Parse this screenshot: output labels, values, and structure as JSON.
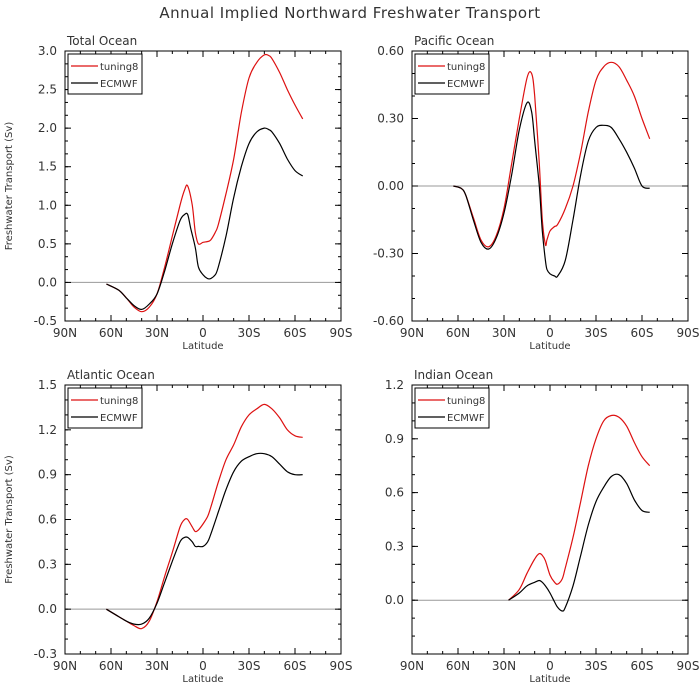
{
  "title": "Annual Implied Northward Freshwater Transport",
  "colors": {
    "tuning8": "#dd1111",
    "ECMWF": "#000000",
    "zero_line": "#999999",
    "axis": "#000000"
  },
  "chart_data": [
    {
      "type": "line",
      "title": "Total Ocean",
      "xlabel": "Latitude",
      "ylabel": "Freshwater Transport (Sv)",
      "x_tick_labels": [
        "90N",
        "60N",
        "30N",
        "0",
        "30S",
        "60S",
        "90S"
      ],
      "x_ticks": [
        -90,
        -60,
        -30,
        0,
        30,
        60,
        90
      ],
      "xlim": [
        -90,
        90
      ],
      "ylim": [
        -0.5,
        3.0
      ],
      "y_ticks": [
        -0.5,
        0.0,
        0.5,
        1.0,
        1.5,
        2.0,
        2.5,
        3.0
      ],
      "y_tick_labels": [
        "-0.5",
        "0.0",
        "0.5",
        "1.0",
        "1.5",
        "2.0",
        "2.5",
        "3.0"
      ],
      "zero_line": true,
      "legend": {
        "placement": "top-left",
        "entries": [
          "tuning8",
          "ECMWF"
        ]
      },
      "series": [
        {
          "name": "tuning8",
          "color_key": "tuning8",
          "x": [
            -63,
            -55,
            -50,
            -45,
            -40,
            -35,
            -30,
            -25,
            -20,
            -15,
            -12,
            -10,
            -7,
            -5,
            -3,
            0,
            3,
            5,
            8,
            10,
            15,
            20,
            25,
            30,
            35,
            40,
            43,
            45,
            50,
            55,
            60,
            65
          ],
          "y": [
            -0.02,
            -0.1,
            -0.2,
            -0.32,
            -0.38,
            -0.32,
            -0.15,
            0.2,
            0.6,
            1.0,
            1.2,
            1.25,
            1.0,
            0.65,
            0.5,
            0.52,
            0.53,
            0.55,
            0.65,
            0.75,
            1.15,
            1.6,
            2.2,
            2.65,
            2.85,
            2.95,
            2.94,
            2.9,
            2.72,
            2.5,
            2.3,
            2.12
          ]
        },
        {
          "name": "ECMWF",
          "color_key": "ECMWF",
          "x": [
            -63,
            -55,
            -50,
            -45,
            -40,
            -35,
            -30,
            -25,
            -20,
            -15,
            -12,
            -10,
            -8,
            -5,
            -3,
            0,
            3,
            5,
            8,
            10,
            15,
            20,
            25,
            30,
            35,
            40,
            43,
            45,
            50,
            55,
            60,
            65
          ],
          "y": [
            -0.02,
            -0.1,
            -0.2,
            -0.3,
            -0.35,
            -0.28,
            -0.15,
            0.15,
            0.5,
            0.8,
            0.88,
            0.88,
            0.7,
            0.45,
            0.2,
            0.1,
            0.05,
            0.05,
            0.1,
            0.2,
            0.6,
            1.1,
            1.5,
            1.8,
            1.95,
            2.0,
            1.98,
            1.95,
            1.8,
            1.6,
            1.45,
            1.38
          ]
        }
      ]
    },
    {
      "type": "line",
      "title": "Pacific Ocean",
      "xlabel": "Latitude",
      "ylabel": "",
      "x_tick_labels": [
        "90N",
        "60N",
        "30N",
        "0",
        "30S",
        "60S",
        "90S"
      ],
      "x_ticks": [
        -90,
        -60,
        -30,
        0,
        30,
        60,
        90
      ],
      "xlim": [
        -90,
        90
      ],
      "ylim": [
        -0.6,
        0.6
      ],
      "y_ticks": [
        -0.6,
        -0.3,
        0.0,
        0.3,
        0.6
      ],
      "y_tick_labels": [
        "-0.60",
        "-0.30",
        "0.00",
        "0.30",
        "0.60"
      ],
      "zero_line": true,
      "legend": {
        "placement": "top-left",
        "entries": [
          "tuning8",
          "ECMWF"
        ]
      },
      "series": [
        {
          "name": "tuning8",
          "color_key": "tuning8",
          "x": [
            -63,
            -58,
            -55,
            -50,
            -45,
            -40,
            -35,
            -30,
            -25,
            -20,
            -15,
            -12,
            -10,
            -7,
            -5,
            -3,
            -2,
            0,
            3,
            5,
            10,
            15,
            20,
            25,
            30,
            35,
            40,
            45,
            50,
            55,
            60,
            65
          ],
          "y": [
            0.0,
            -0.01,
            -0.04,
            -0.14,
            -0.24,
            -0.27,
            -0.22,
            -0.1,
            0.1,
            0.3,
            0.48,
            0.5,
            0.4,
            0.1,
            -0.15,
            -0.26,
            -0.24,
            -0.2,
            -0.18,
            -0.17,
            -0.1,
            0.0,
            0.15,
            0.33,
            0.47,
            0.53,
            0.55,
            0.53,
            0.47,
            0.4,
            0.3,
            0.21
          ]
        },
        {
          "name": "ECMWF",
          "color_key": "ECMWF",
          "x": [
            -63,
            -58,
            -55,
            -50,
            -45,
            -40,
            -35,
            -30,
            -25,
            -20,
            -15,
            -12,
            -10,
            -7,
            -5,
            -3,
            -2,
            0,
            3,
            5,
            10,
            15,
            20,
            25,
            30,
            35,
            40,
            45,
            50,
            55,
            60,
            65
          ],
          "y": [
            0.0,
            -0.01,
            -0.04,
            -0.15,
            -0.25,
            -0.28,
            -0.23,
            -0.12,
            0.05,
            0.25,
            0.37,
            0.33,
            0.2,
            0.0,
            -0.2,
            -0.33,
            -0.37,
            -0.39,
            -0.4,
            -0.4,
            -0.33,
            -0.15,
            0.05,
            0.2,
            0.26,
            0.27,
            0.26,
            0.21,
            0.15,
            0.08,
            0.0,
            -0.01
          ]
        }
      ]
    },
    {
      "type": "line",
      "title": "Atlantic Ocean",
      "xlabel": "Latitude",
      "ylabel": "Freshwater Transport (Sv)",
      "x_tick_labels": [
        "90N",
        "60N",
        "30N",
        "0",
        "30S",
        "60S",
        "90S"
      ],
      "x_ticks": [
        -90,
        -60,
        -30,
        0,
        30,
        60,
        90
      ],
      "xlim": [
        -90,
        90
      ],
      "ylim": [
        -0.3,
        1.5
      ],
      "y_ticks": [
        -0.3,
        0.0,
        0.3,
        0.6,
        0.9,
        1.2,
        1.5
      ],
      "y_tick_labels": [
        "-0.3",
        "0.0",
        "0.3",
        "0.6",
        "0.9",
        "1.2",
        "1.5"
      ],
      "zero_line": true,
      "legend": {
        "placement": "top-left",
        "entries": [
          "tuning8",
          "ECMWF"
        ]
      },
      "series": [
        {
          "name": "tuning8",
          "color_key": "tuning8",
          "x": [
            -63,
            -55,
            -50,
            -45,
            -40,
            -35,
            -30,
            -25,
            -20,
            -15,
            -12,
            -10,
            -7,
            -5,
            -3,
            0,
            3,
            5,
            10,
            15,
            20,
            25,
            30,
            35,
            40,
            45,
            50,
            55,
            60,
            65
          ],
          "y": [
            0.0,
            -0.05,
            -0.08,
            -0.11,
            -0.13,
            -0.08,
            0.05,
            0.22,
            0.38,
            0.55,
            0.6,
            0.6,
            0.55,
            0.52,
            0.53,
            0.57,
            0.62,
            0.68,
            0.85,
            1.0,
            1.1,
            1.22,
            1.3,
            1.34,
            1.37,
            1.34,
            1.28,
            1.2,
            1.16,
            1.15
          ]
        },
        {
          "name": "ECMWF",
          "color_key": "ECMWF",
          "x": [
            -63,
            -55,
            -50,
            -45,
            -40,
            -35,
            -30,
            -25,
            -20,
            -15,
            -12,
            -10,
            -7,
            -5,
            -3,
            0,
            3,
            5,
            10,
            15,
            20,
            25,
            30,
            35,
            40,
            45,
            50,
            55,
            60,
            65
          ],
          "y": [
            0.0,
            -0.05,
            -0.08,
            -0.1,
            -0.1,
            -0.06,
            0.04,
            0.18,
            0.32,
            0.45,
            0.48,
            0.48,
            0.45,
            0.42,
            0.42,
            0.42,
            0.45,
            0.5,
            0.65,
            0.8,
            0.92,
            0.99,
            1.02,
            1.04,
            1.04,
            1.02,
            0.97,
            0.92,
            0.9,
            0.9
          ]
        }
      ]
    },
    {
      "type": "line",
      "title": "Indian Ocean",
      "xlabel": "Latitude",
      "ylabel": "",
      "x_tick_labels": [
        "90N",
        "60N",
        "30N",
        "0",
        "30S",
        "60S",
        "90S"
      ],
      "x_ticks": [
        -90,
        -60,
        -30,
        0,
        30,
        60,
        90
      ],
      "xlim": [
        -90,
        90
      ],
      "ylim": [
        -0.3,
        1.2
      ],
      "y_ticks": [
        0.0,
        0.3,
        0.6,
        0.9,
        1.2
      ],
      "y_tick_labels": [
        "0.0",
        "0.3",
        "0.6",
        "0.9",
        "1.2"
      ],
      "zero_line": true,
      "legend": {
        "placement": "top-left",
        "entries": [
          "tuning8",
          "ECMWF"
        ]
      },
      "series": [
        {
          "name": "tuning8",
          "color_key": "tuning8",
          "x": [
            -27,
            -20,
            -15,
            -10,
            -7,
            -5,
            -3,
            0,
            3,
            5,
            8,
            10,
            15,
            20,
            25,
            30,
            35,
            40,
            45,
            50,
            55,
            60,
            65
          ],
          "y": [
            0.0,
            0.06,
            0.15,
            0.23,
            0.26,
            0.25,
            0.22,
            0.14,
            0.1,
            0.09,
            0.12,
            0.18,
            0.35,
            0.55,
            0.75,
            0.9,
            1.0,
            1.03,
            1.02,
            0.97,
            0.88,
            0.8,
            0.75
          ]
        },
        {
          "name": "ECMWF",
          "color_key": "ECMWF",
          "x": [
            -27,
            -20,
            -15,
            -10,
            -7,
            -5,
            -3,
            0,
            3,
            5,
            8,
            10,
            15,
            20,
            25,
            30,
            35,
            40,
            45,
            50,
            55,
            60,
            65
          ],
          "y": [
            0.0,
            0.04,
            0.08,
            0.1,
            0.11,
            0.1,
            0.08,
            0.04,
            -0.01,
            -0.04,
            -0.06,
            -0.04,
            0.08,
            0.25,
            0.42,
            0.55,
            0.63,
            0.69,
            0.7,
            0.65,
            0.56,
            0.5,
            0.49
          ]
        }
      ]
    }
  ]
}
